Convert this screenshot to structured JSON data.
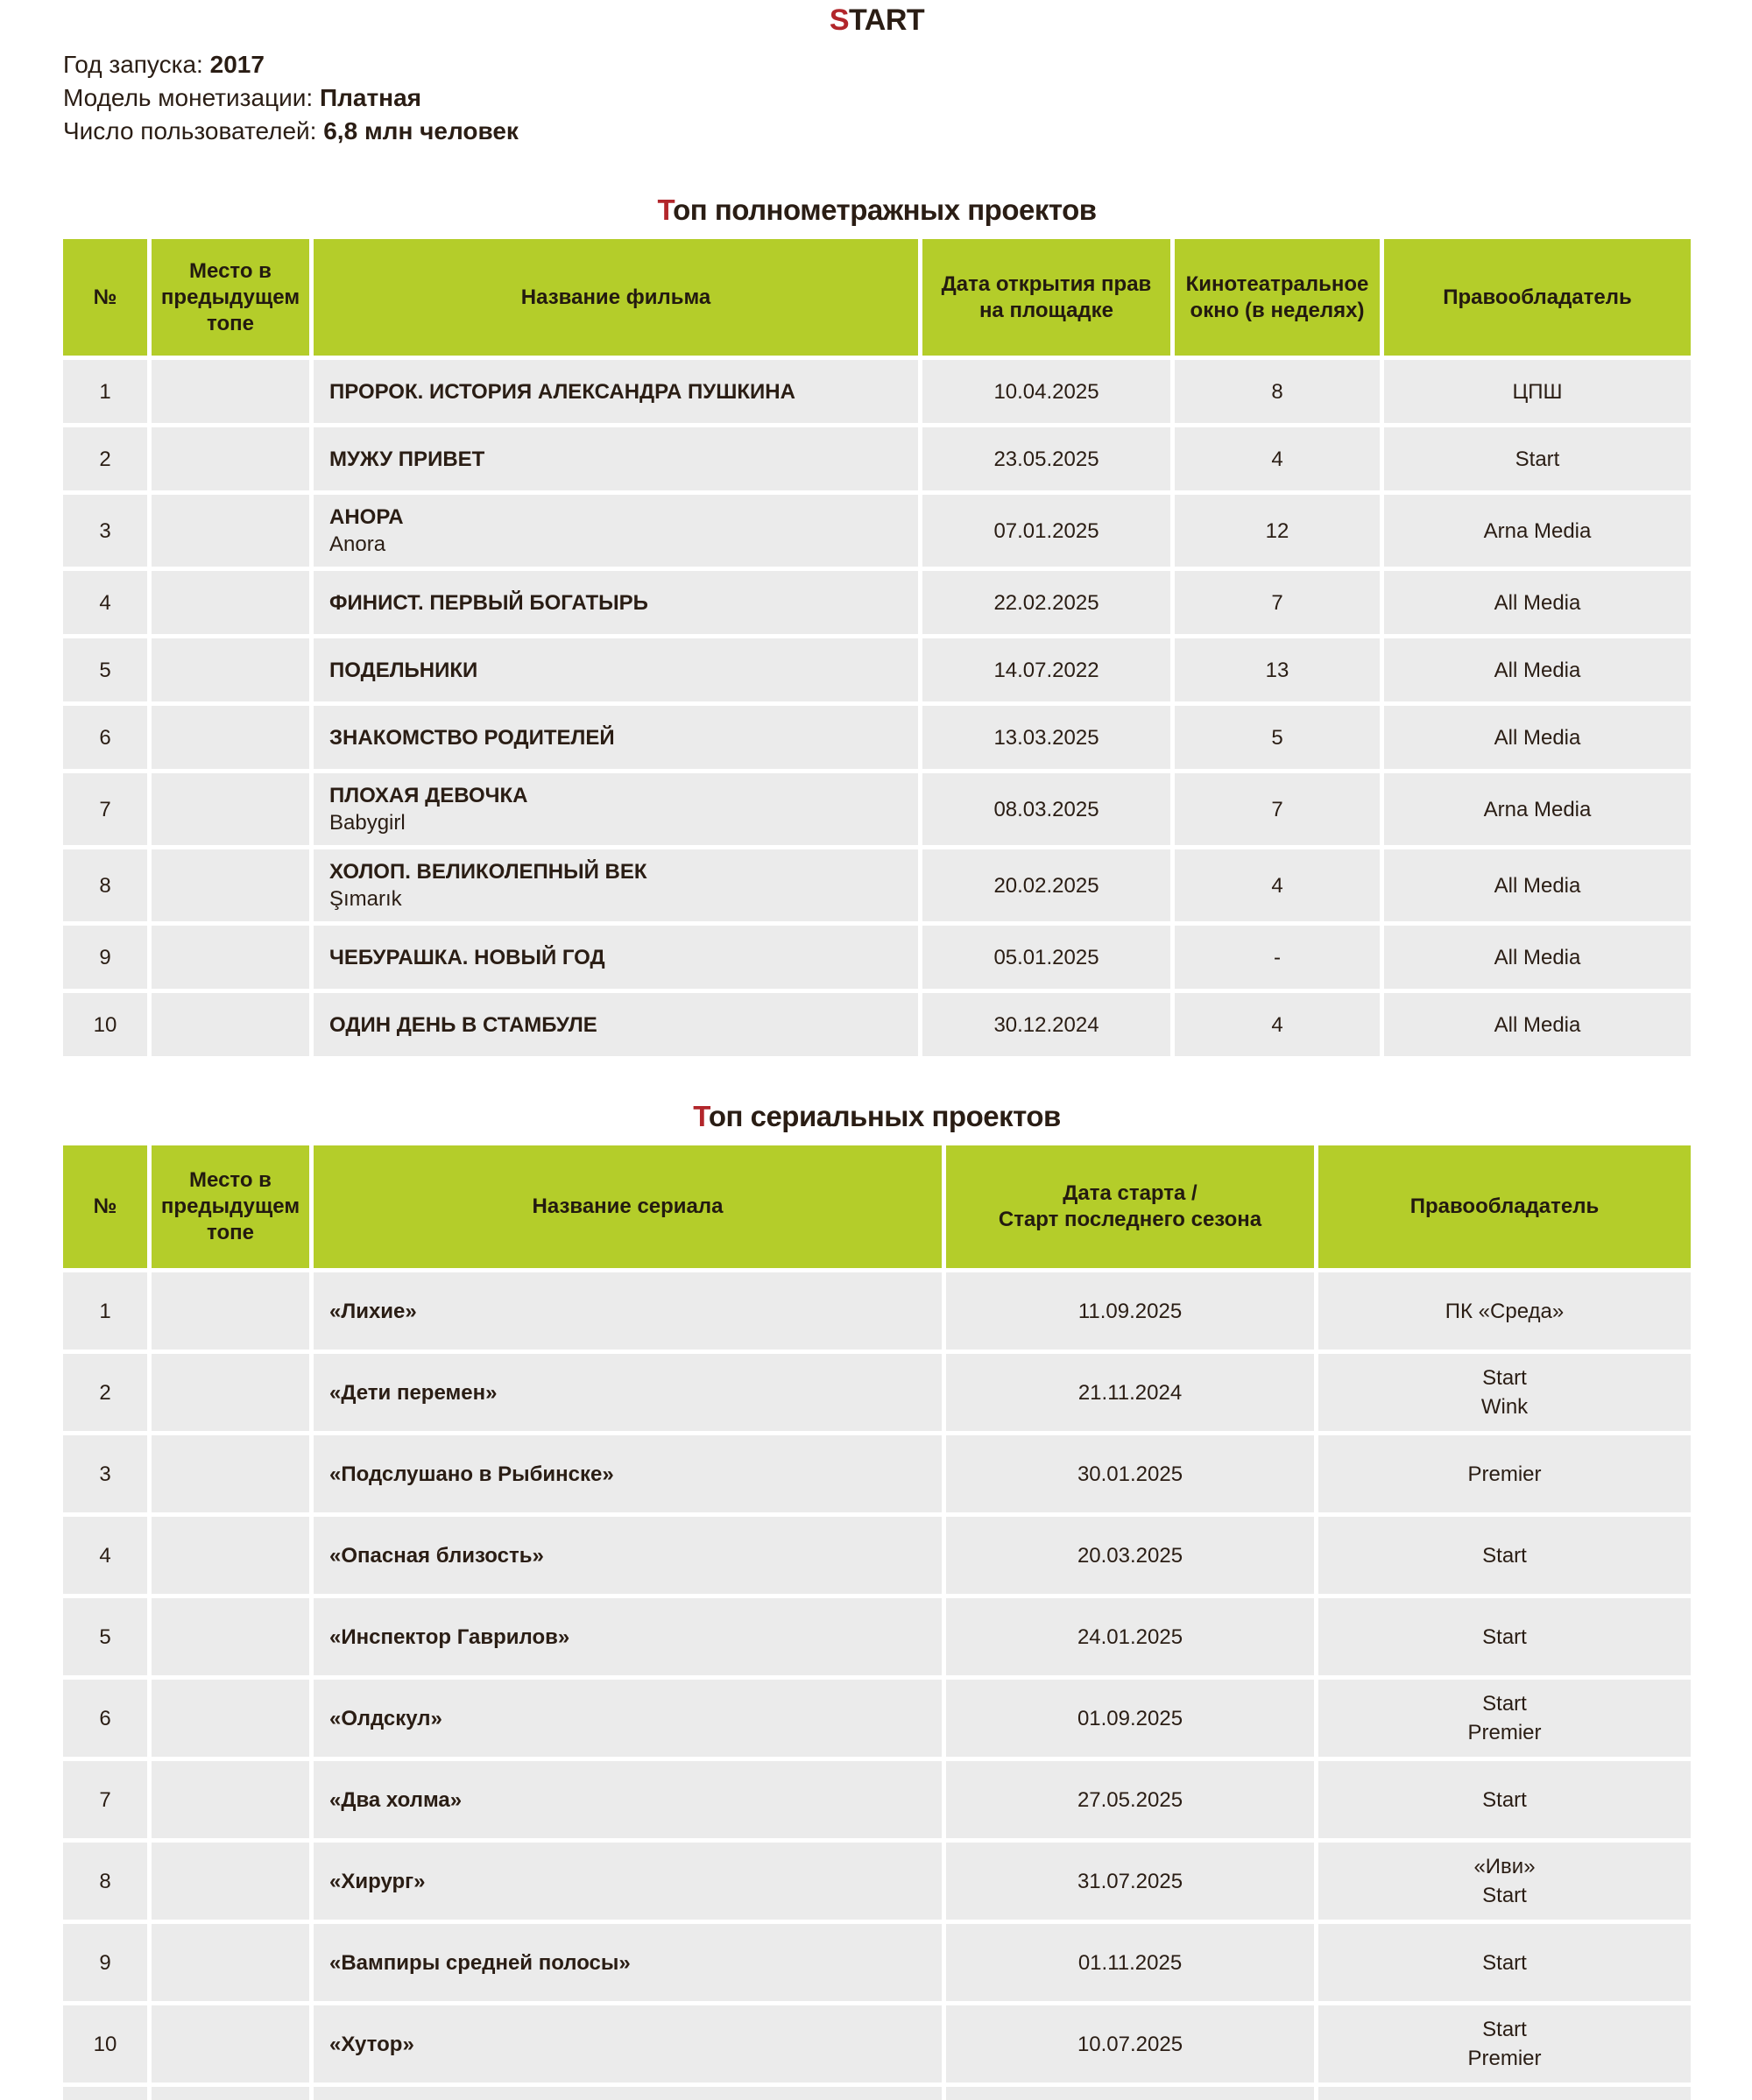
{
  "page": {
    "title": {
      "accent": "S",
      "rest": "TART"
    },
    "info": [
      {
        "label": "Год запуска: ",
        "value": "2017"
      },
      {
        "label": "Модель монетизации: ",
        "value": "Платная"
      },
      {
        "label": "Число пользователей: ",
        "value": "6,8 млн человек"
      }
    ]
  },
  "colors": {
    "accent_green": "#b4cd2a",
    "row_gray": "#ebebeb",
    "accent_red": "#b2262b",
    "text_dark": "#2a1d14"
  },
  "films": {
    "section_title": {
      "accent": "Т",
      "rest": "оп полнометражных проектов"
    },
    "headers": {
      "num": "№",
      "prev": "Место в предыдущем топе",
      "title": "Название фильма",
      "date": "Дата открытия прав\nна площадке",
      "window": "Кинотеатральное\nокно (в неделях)",
      "owner": "Правообладатель"
    },
    "rows": [
      {
        "num": "1",
        "prev": "",
        "title": "ПРОРОК. ИСТОРИЯ АЛЕКСАНДРА ПУШКИНА",
        "date": "10.04.2025",
        "window": "8",
        "owner": "ЦПШ"
      },
      {
        "num": "2",
        "prev": "",
        "title": "МУЖУ ПРИВЕТ",
        "date": "23.05.2025",
        "window": "4",
        "owner": "Start"
      },
      {
        "num": "3",
        "prev": "",
        "title": "АНОРА",
        "subtitle": "Anora",
        "date": "07.01.2025",
        "window": "12",
        "owner": "Arna Media"
      },
      {
        "num": "4",
        "prev": "",
        "title": "ФИНИСТ. ПЕРВЫЙ БОГАТЫРЬ",
        "date": "22.02.2025",
        "window": "7",
        "owner": "All Media"
      },
      {
        "num": "5",
        "prev": "",
        "title": "ПОДЕЛЬНИКИ",
        "date": "14.07.2022",
        "window": "13",
        "owner": "All Media"
      },
      {
        "num": "6",
        "prev": "",
        "title": "ЗНАКОМСТВО РОДИТЕЛЕЙ",
        "date": "13.03.2025",
        "window": "5",
        "owner": "All Media"
      },
      {
        "num": "7",
        "prev": "",
        "title": "ПЛОХАЯ ДЕВОЧКА",
        "subtitle": "Babygirl",
        "date": "08.03.2025",
        "window": "7",
        "owner": "Arna Media"
      },
      {
        "num": "8",
        "prev": "",
        "title": "ХОЛОП. ВЕЛИКОЛЕПНЫЙ ВЕК",
        "subtitle": "Şımarık",
        "date": "20.02.2025",
        "window": "4",
        "owner": "All Media"
      },
      {
        "num": "9",
        "prev": "",
        "title": "ЧЕБУРАШКА. НОВЫЙ ГОД",
        "date": "05.01.2025",
        "window": "-",
        "owner": "All Media"
      },
      {
        "num": "10",
        "prev": "",
        "title": "ОДИН ДЕНЬ В СТАМБУЛЕ",
        "date": "30.12.2024",
        "window": "4",
        "owner": "All Media"
      }
    ]
  },
  "series": {
    "section_title": {
      "accent": "Т",
      "rest": "оп сериальных проектов"
    },
    "headers": {
      "num": "№",
      "prev": "Место в предыдущем топе",
      "title": "Название сериала",
      "date": "Дата старта /\nСтарт последнего сезона",
      "owner": "Правообладатель"
    },
    "rows": [
      {
        "num": "1",
        "prev": "",
        "title": "«Лихие»",
        "date": "11.09.2025",
        "owner": "ПК «Среда»"
      },
      {
        "num": "2",
        "prev": "",
        "title": "«Дети перемен»",
        "date": "21.11.2024",
        "owner": "Start\nWink"
      },
      {
        "num": "3",
        "prev": "",
        "title": "«Подслушано в Рыбинске»",
        "date": "30.01.2025",
        "owner": "Premier"
      },
      {
        "num": "4",
        "prev": "",
        "title": "«Опасная близость»",
        "date": "20.03.2025",
        "owner": "Start"
      },
      {
        "num": "5",
        "prev": "",
        "title": "«Инспектор Гаврилов»",
        "date": "24.01.2025",
        "owner": "Start"
      },
      {
        "num": "6",
        "prev": "",
        "title": "«Олдскул»",
        "date": "01.09.2025",
        "owner": "Start\nPremier"
      },
      {
        "num": "7",
        "prev": "",
        "title": "«Два холма»",
        "date": "27.05.2025",
        "owner": "Start"
      },
      {
        "num": "8",
        "prev": "",
        "title": "«Хирург»",
        "date": "31.07.2025",
        "owner": "«Иви»\nStart"
      },
      {
        "num": "9",
        "prev": "",
        "title": "«Вампиры средней полосы»",
        "date": "01.11.2025",
        "owner": "Start"
      },
      {
        "num": "10",
        "prev": "",
        "title": "«Хутор»",
        "date": "10.07.2025",
        "owner": "Start\nPremier"
      }
    ]
  }
}
